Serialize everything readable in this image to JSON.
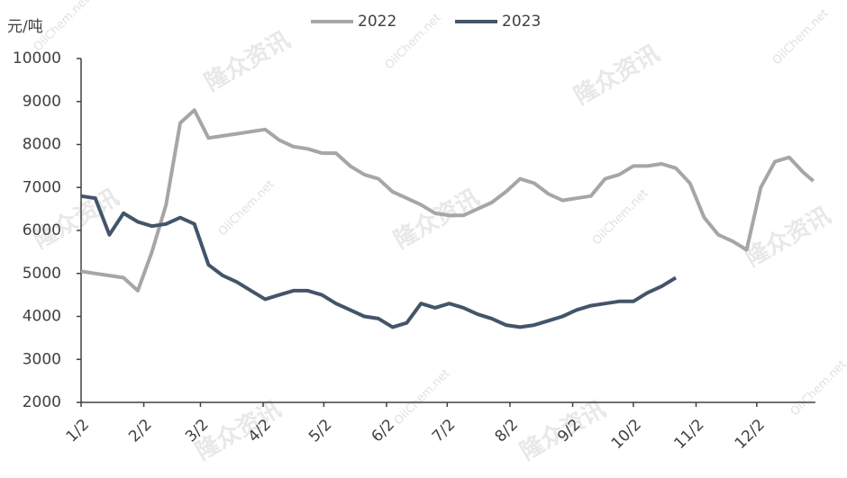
{
  "chart_data": {
    "type": "line",
    "y_label": "元/吨",
    "watermarks": [
      "隆众资讯",
      "OilChem.net"
    ],
    "x": [
      "1/2",
      "1/9",
      "1/16",
      "1/23",
      "1/30",
      "2/6",
      "2/13",
      "2/20",
      "2/27",
      "3/6",
      "3/13",
      "3/20",
      "3/27",
      "4/3",
      "4/10",
      "4/17",
      "4/24",
      "5/1",
      "5/8",
      "5/15",
      "5/22",
      "5/29",
      "6/5",
      "6/12",
      "6/19",
      "6/26",
      "7/3",
      "7/10",
      "7/17",
      "7/24",
      "7/31",
      "8/7",
      "8/14",
      "8/21",
      "8/28",
      "9/4",
      "9/11",
      "9/18",
      "9/25",
      "10/2",
      "10/9",
      "10/16",
      "10/23",
      "10/30",
      "11/6",
      "11/13",
      "11/20",
      "11/27",
      "12/4",
      "12/11",
      "12/18",
      "12/25",
      "12/30"
    ],
    "series": [
      {
        "name": "2022",
        "color": "#a6a6a6",
        "values": [
          5050,
          5000,
          4950,
          4900,
          4600,
          5500,
          6600,
          8500,
          8800,
          8150,
          8200,
          8250,
          8300,
          8350,
          8100,
          7950,
          7900,
          7800,
          7800,
          7500,
          7300,
          7200,
          6900,
          6750,
          6600,
          6400,
          6350,
          6350,
          6500,
          6650,
          6900,
          7200,
          7100,
          6850,
          6700,
          6750,
          6800,
          7200,
          7300,
          7500,
          7500,
          7550,
          7450,
          7100,
          6300,
          5900,
          5750,
          5550,
          7000,
          7600,
          7700,
          7350,
          7150
        ]
      },
      {
        "name": "2023",
        "color": "#44546a",
        "values": [
          6800,
          6750,
          5900,
          6400,
          6200,
          6100,
          6150,
          6300,
          6150,
          5200,
          4950,
          4800,
          4600,
          4400,
          4500,
          4600,
          4600,
          4500,
          4300,
          4150,
          4000,
          3950,
          3750,
          3850,
          4300,
          4200,
          4300,
          4200,
          4050,
          3950,
          3800,
          3750,
          3800,
          3900,
          4000,
          4150,
          4250,
          4300,
          4350,
          4350,
          4550,
          4700,
          4900,
          null,
          null,
          null,
          null,
          null,
          null,
          null,
          null,
          null,
          null
        ]
      }
    ],
    "xticks": [
      "1/2",
      "2/2",
      "3/2",
      "4/2",
      "5/2",
      "6/2",
      "7/2",
      "8/2",
      "9/2",
      "10/2",
      "11/2",
      "12/2"
    ],
    "ylim": [
      2000,
      10000
    ],
    "yticks": [
      2000,
      3000,
      4000,
      5000,
      6000,
      7000,
      8000,
      9000,
      10000
    ],
    "legend": "top"
  }
}
